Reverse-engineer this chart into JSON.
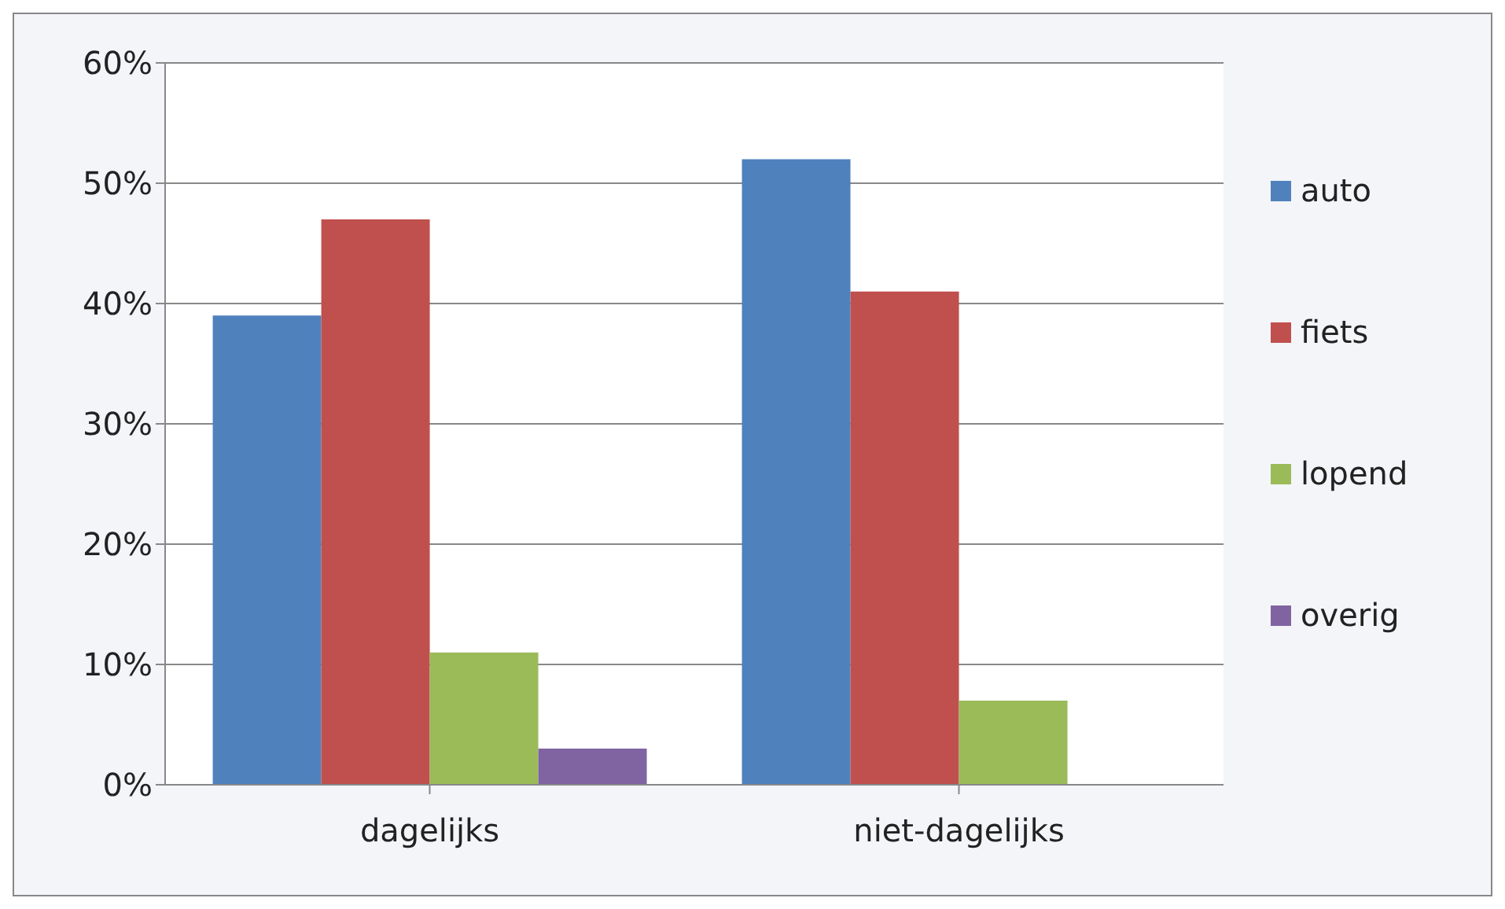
{
  "chart_data": {
    "type": "bar",
    "categories": [
      "dagelijks",
      "niet-dagelijks"
    ],
    "series": [
      {
        "name": "auto",
        "color": "#4f81bd",
        "values": [
          39,
          52
        ]
      },
      {
        "name": "fiets",
        "color": "#c0504d",
        "values": [
          47,
          41
        ]
      },
      {
        "name": "lopend",
        "color": "#9bbb59",
        "values": [
          11,
          7
        ]
      },
      {
        "name": "overig",
        "color": "#8064a2",
        "values": [
          3,
          null
        ]
      }
    ],
    "ylim": [
      0,
      60
    ],
    "yticks": [
      {
        "value": 0,
        "label": "0%"
      },
      {
        "value": 10,
        "label": "10%"
      },
      {
        "value": 20,
        "label": "20%"
      },
      {
        "value": 30,
        "label": "30%"
      },
      {
        "value": 40,
        "label": "40%"
      },
      {
        "value": 50,
        "label": "50%"
      },
      {
        "value": 60,
        "label": "60%"
      }
    ],
    "grid": "y",
    "legend": "right"
  }
}
